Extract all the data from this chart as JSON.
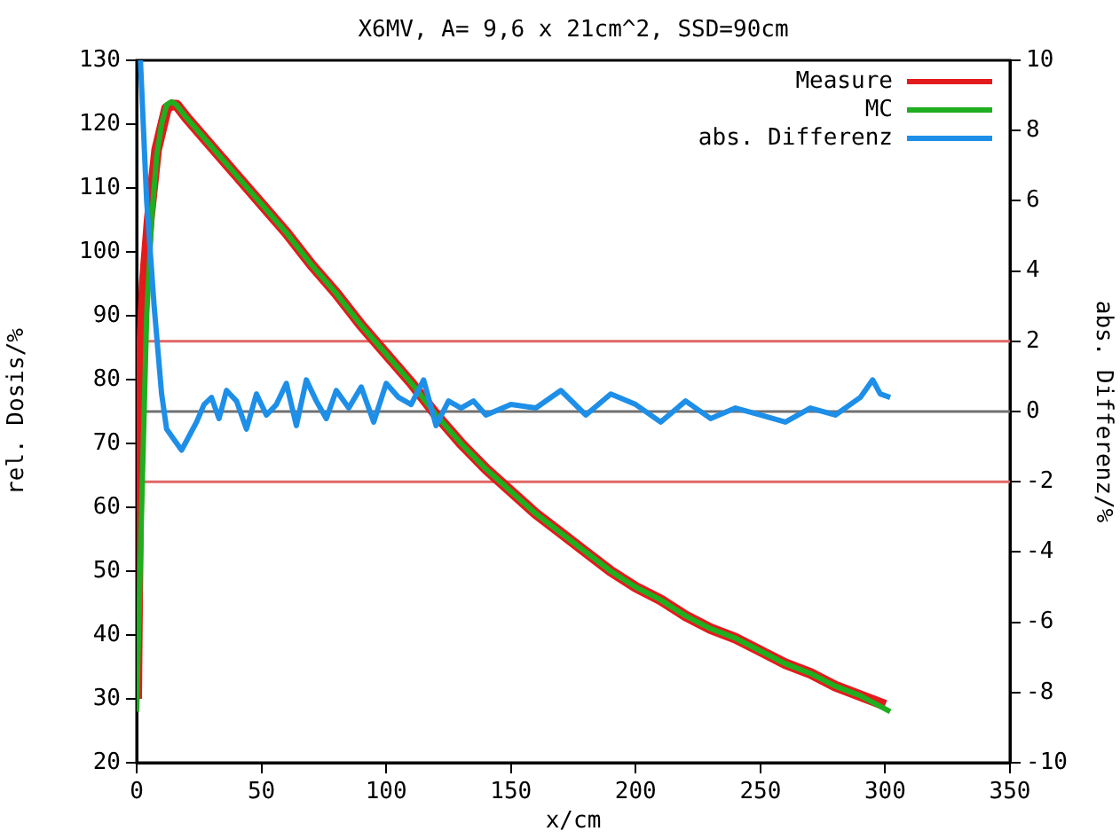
{
  "chart_data": {
    "type": "line",
    "title": "X6MV, A= 9,6 x 21cm^2, SSD=90cm",
    "xlabel": "x/cm",
    "ylabel": "rel. Dosis/%",
    "y2label": "abs. Differenz/%",
    "xlim": [
      0,
      350
    ],
    "xticks": [
      0,
      50,
      100,
      150,
      200,
      250,
      300,
      350
    ],
    "ylim": [
      20,
      130
    ],
    "yticks": [
      20,
      30,
      40,
      50,
      60,
      70,
      80,
      90,
      100,
      110,
      120,
      130
    ],
    "y2lim": [
      -10,
      10
    ],
    "y2ticks": [
      -10,
      -8,
      -6,
      -4,
      -2,
      0,
      2,
      4,
      6,
      8,
      10
    ],
    "grid": false,
    "legend": "top right",
    "marker": "none",
    "line_style": "solid",
    "ref_lines": [
      {
        "axis": "y2",
        "value": 2,
        "color": "#e06666"
      },
      {
        "axis": "y2",
        "value": 0,
        "color": "#707070"
      },
      {
        "axis": "y2",
        "value": -2,
        "color": "#e06666"
      }
    ],
    "series": [
      {
        "name": "Measure",
        "color": "#e41a1c",
        "x": [
          0,
          1,
          2,
          3,
          5,
          8,
          12,
          14,
          16,
          20,
          30,
          40,
          50,
          60,
          70,
          80,
          90,
          100,
          110,
          120,
          130,
          140,
          150,
          160,
          170,
          180,
          190,
          200,
          210,
          220,
          230,
          240,
          250,
          260,
          270,
          280,
          290,
          300
        ],
        "values": [
          30,
          70,
          85,
          95,
          105,
          116,
          122.5,
          123,
          123,
          121,
          116.5,
          112,
          107.5,
          103,
          98,
          93.5,
          88.5,
          84,
          79.5,
          74.5,
          70,
          66,
          62.5,
          59,
          56,
          53,
          50,
          47.5,
          45.5,
          43,
          41,
          39.5,
          37.5,
          35.5,
          34,
          32,
          30.5,
          29
        ]
      },
      {
        "name": "MC",
        "color": "#1fae1f",
        "x": [
          0,
          2,
          4,
          6,
          8,
          10,
          12,
          14,
          16,
          20,
          30,
          40,
          50,
          60,
          70,
          80,
          90,
          100,
          110,
          120,
          130,
          140,
          150,
          160,
          170,
          180,
          190,
          200,
          210,
          220,
          230,
          240,
          250,
          260,
          270,
          280,
          290,
          302
        ],
        "values": [
          28,
          60,
          90,
          105,
          115,
          120,
          123,
          123.5,
          123,
          121,
          116.5,
          112,
          107.5,
          103,
          98,
          93.5,
          88.5,
          84,
          79.5,
          74.5,
          70,
          66,
          62.5,
          59,
          56,
          53,
          50,
          47.5,
          45.5,
          43,
          41,
          39.5,
          37.5,
          35.5,
          34,
          32,
          30.5,
          28
        ]
      },
      {
        "name": "abs. Differenz",
        "color": "#1e8fe8",
        "axis": "y2",
        "x": [
          1.5,
          4,
          7,
          10,
          12,
          15,
          18,
          21,
          24,
          27,
          30,
          33,
          36,
          40,
          44,
          48,
          52,
          56,
          60,
          64,
          68,
          72,
          76,
          80,
          85,
          90,
          95,
          100,
          105,
          110,
          115,
          120,
          125,
          130,
          135,
          140,
          150,
          160,
          170,
          180,
          190,
          200,
          210,
          220,
          230,
          240,
          250,
          260,
          270,
          280,
          290,
          295,
          298,
          302
        ],
        "values": [
          10,
          6,
          3,
          0.5,
          -0.5,
          -0.8,
          -1.1,
          -0.7,
          -0.3,
          0.2,
          0.4,
          -0.2,
          0.6,
          0.3,
          -0.5,
          0.5,
          -0.1,
          0.2,
          0.8,
          -0.4,
          0.9,
          0.3,
          -0.2,
          0.6,
          0.1,
          0.7,
          -0.3,
          0.8,
          0.4,
          0.2,
          0.9,
          -0.4,
          0.3,
          0.1,
          0.3,
          -0.1,
          0.2,
          0.1,
          0.6,
          -0.1,
          0.5,
          0.2,
          -0.3,
          0.3,
          -0.2,
          0.1,
          -0.1,
          -0.3,
          0.1,
          -0.1,
          0.4,
          0.9,
          0.5,
          0.4
        ]
      }
    ]
  }
}
